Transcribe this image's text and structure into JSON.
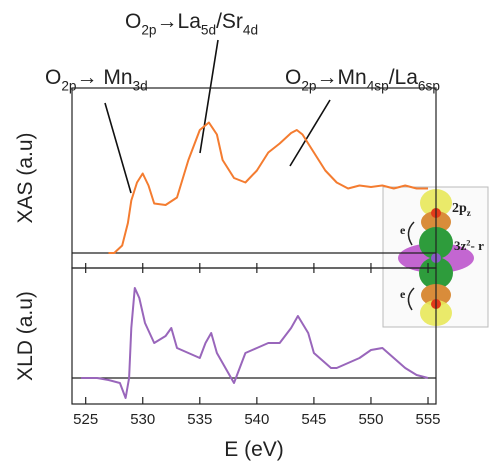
{
  "chart_data": [
    {
      "type": "line",
      "ylabel": "XAS (a.u)",
      "xlim": [
        523.8,
        555.7
      ],
      "ylim": [
        -0.1,
        1.1
      ],
      "zero_line": true,
      "series": [
        {
          "name": null,
          "color": "#f47c30",
          "x": [
            527,
            527.5,
            528.2,
            528.7,
            529,
            529.5,
            530,
            530.5,
            531,
            532,
            533,
            534,
            535,
            535.8,
            536.5,
            537,
            538,
            539,
            540,
            541,
            542,
            543,
            543.5,
            544,
            545,
            546,
            547,
            548,
            549,
            550,
            551,
            552,
            553,
            554,
            555
          ],
          "values": [
            0,
            0,
            0.05,
            0.2,
            0.35,
            0.47,
            0.53,
            0.45,
            0.33,
            0.32,
            0.37,
            0.62,
            0.82,
            0.87,
            0.79,
            0.62,
            0.5,
            0.47,
            0.55,
            0.67,
            0.73,
            0.8,
            0.82,
            0.79,
            0.67,
            0.55,
            0.47,
            0.43,
            0.45,
            0.44,
            0.45,
            0.43,
            0.45,
            0.43,
            0.43
          ]
        }
      ],
      "annotations": [
        {
          "parts": [
            {
              "text": "O"
            },
            {
              "text": "2p",
              "sub": true
            },
            {
              "text": "→ Mn"
            },
            {
              "text": "3d",
              "sub": true
            }
          ]
        },
        {
          "parts": [
            {
              "text": "O"
            },
            {
              "text": "2p",
              "sub": true
            },
            {
              "text": "→La"
            },
            {
              "text": "5d",
              "sub": true
            },
            {
              "text": "/Sr"
            },
            {
              "text": "4d",
              "sub": true
            }
          ]
        },
        {
          "parts": [
            {
              "text": "O"
            },
            {
              "text": "2p",
              "sub": true
            },
            {
              "text": "→Mn"
            },
            {
              "text": "4sp",
              "sub": true
            },
            {
              "text": "/La"
            },
            {
              "text": "6sp",
              "sub": true
            }
          ]
        }
      ]
    },
    {
      "type": "line",
      "ylabel": "XLD (a.u)",
      "xlabel": "E (eV)",
      "xlim": [
        523.8,
        555.7
      ],
      "ylim": [
        -0.26,
        1.1
      ],
      "zero_line": true,
      "xticks": [
        525,
        530,
        535,
        540,
        545,
        550,
        555
      ],
      "series": [
        {
          "name": null,
          "color": "#9966bb",
          "x": [
            524.6,
            526,
            527,
            528,
            528.5,
            528.8,
            529,
            529.3,
            529.7,
            530.2,
            531,
            532,
            532.5,
            533,
            534,
            535,
            535.5,
            536,
            536.5,
            537.5,
            538,
            538.5,
            539,
            540,
            541,
            542,
            543,
            543.6,
            544.5,
            545,
            546,
            546.5,
            547,
            548,
            549,
            550,
            551,
            552,
            553,
            554,
            555
          ],
          "values": [
            0,
            0,
            -0.02,
            -0.05,
            -0.2,
            0,
            0.5,
            0.9,
            0.8,
            0.55,
            0.35,
            0.42,
            0.5,
            0.3,
            0.25,
            0.2,
            0.35,
            0.45,
            0.25,
            0.05,
            -0.05,
            0.1,
            0.25,
            0.3,
            0.35,
            0.35,
            0.5,
            0.62,
            0.45,
            0.25,
            0.15,
            0.1,
            0.1,
            0.15,
            0.2,
            0.28,
            0.3,
            0.2,
            0.1,
            0.03,
            0
          ]
        }
      ]
    }
  ],
  "inset": {
    "labels": [
      {
        "parts": [
          {
            "text": "2p"
          },
          {
            "text": "z",
            "sub": true
          }
        ]
      },
      {
        "parts": [
          {
            "text": "3z"
          },
          {
            "text": "2",
            "sup": true
          },
          {
            "text": "- r"
          }
        ]
      },
      {
        "parts": [
          {
            "text": "e"
          }
        ]
      },
      {
        "parts": [
          {
            "text": "e"
          }
        ]
      }
    ]
  }
}
